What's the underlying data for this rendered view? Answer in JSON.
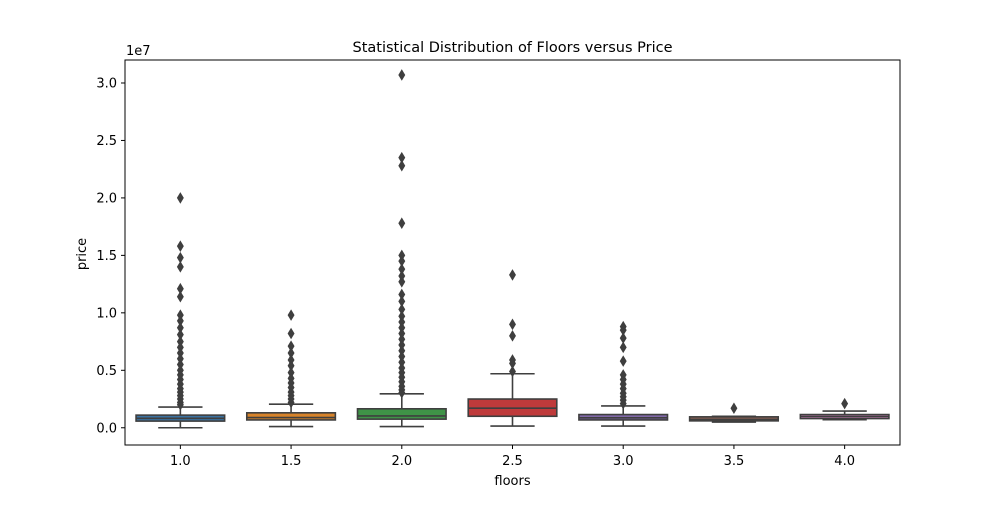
{
  "chart_data": {
    "type": "box",
    "title": "Statistical Distribution of Floors versus Price",
    "xlabel": "floors",
    "ylabel": "price",
    "y_offset_label": "1e7",
    "ylim": [
      -1500000,
      32000000
    ],
    "y_ticks": [
      0,
      5000000,
      10000000,
      15000000,
      20000000,
      25000000,
      30000000
    ],
    "y_tick_labels": [
      "0.0",
      "0.5",
      "1.0",
      "1.5",
      "2.0",
      "2.5",
      "3.0"
    ],
    "categories": [
      "1.0",
      "1.5",
      "2.0",
      "2.5",
      "3.0",
      "3.5",
      "4.0"
    ],
    "grid": false,
    "boxes": [
      {
        "category": "1.0",
        "color": "#3a72a1",
        "whisker_low": 0,
        "q1": 580000,
        "median": 820000,
        "q3": 1100000,
        "whisker_high": 1800000,
        "outliers": [
          20000000,
          15800000,
          14800000,
          14000000,
          12100000,
          11400000,
          9800000,
          9300000,
          8700000,
          8100000,
          7500000,
          7000000,
          6500000,
          6000000,
          5500000,
          5000000,
          4600000,
          4200000,
          3800000,
          3400000,
          3100000,
          2800000,
          2500000,
          2200000,
          2000000
        ]
      },
      {
        "category": "1.5",
        "color": "#d7832a",
        "whisker_low": 100000,
        "q1": 680000,
        "median": 890000,
        "q3": 1300000,
        "whisker_high": 2050000,
        "outliers": [
          9800000,
          8200000,
          7100000,
          6500000,
          5900000,
          5400000,
          4800000,
          4300000,
          3900000,
          3500000,
          3100000,
          2800000,
          2500000,
          2200000
        ]
      },
      {
        "category": "2.0",
        "color": "#3f9347",
        "whisker_low": 100000,
        "q1": 750000,
        "median": 1030000,
        "q3": 1650000,
        "whisker_high": 2950000,
        "outliers": [
          30700000,
          23500000,
          22800000,
          17800000,
          15000000,
          14500000,
          13800000,
          13200000,
          12700000,
          11600000,
          11000000,
          10300000,
          9700000,
          9200000,
          8700000,
          8200000,
          7700000,
          7200000,
          6700000,
          6200000,
          5700000,
          5200000,
          4800000,
          4400000,
          4000000,
          3600000,
          3300000,
          3050000
        ]
      },
      {
        "category": "2.5",
        "color": "#bf3a3b",
        "whisker_low": 150000,
        "q1": 1000000,
        "median": 1700000,
        "q3": 2500000,
        "whisker_high": 4700000,
        "outliers": [
          13300000,
          9000000,
          8000000,
          5900000,
          5600000,
          4900000
        ]
      },
      {
        "category": "3.0",
        "color": "#8068a8",
        "whisker_low": 150000,
        "q1": 680000,
        "median": 870000,
        "q3": 1150000,
        "whisker_high": 1900000,
        "outliers": [
          8800000,
          8500000,
          7800000,
          7000000,
          5800000,
          4600000,
          4200000,
          3800000,
          3400000,
          3000000,
          2700000,
          2400000,
          2100000
        ]
      },
      {
        "category": "3.5",
        "color": "#8d6155",
        "whisker_low": 500000,
        "q1": 600000,
        "median": 720000,
        "q3": 950000,
        "whisker_high": 1000000,
        "outliers": [
          1700000
        ]
      },
      {
        "category": "4.0",
        "color": "#c67fb4",
        "whisker_low": 700000,
        "q1": 800000,
        "median": 980000,
        "q3": 1150000,
        "whisker_high": 1450000,
        "outliers": [
          2100000
        ]
      }
    ]
  }
}
